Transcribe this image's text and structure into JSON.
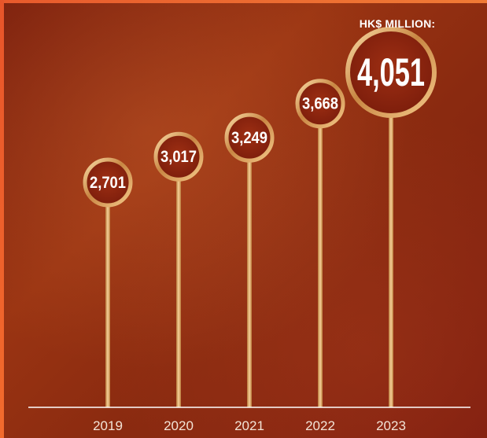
{
  "unit_label": "HK$ MILLION:",
  "chart_data": {
    "type": "lollipop",
    "categories": [
      "2019",
      "2020",
      "2021",
      "2022",
      "2023"
    ],
    "values": [
      2701,
      3017,
      3249,
      3668,
      4051
    ],
    "value_labels": [
      "2,701",
      "3,017",
      "3,249",
      "3,668",
      "4,051"
    ],
    "highlight_index": 4,
    "colors": {
      "stick": "#e3b071",
      "ring": "#e7b676",
      "value_text": "#ffffff",
      "highlight_text": "#fff200",
      "axis": "#ffffff"
    }
  }
}
